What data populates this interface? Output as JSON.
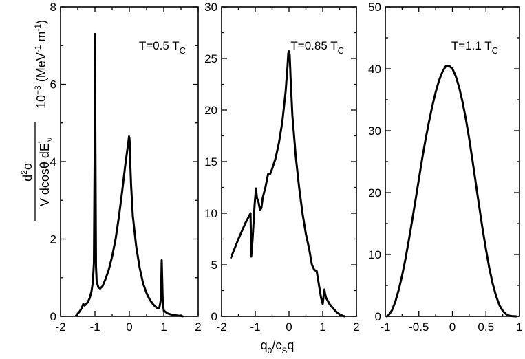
{
  "chart_data": [
    {
      "type": "line",
      "annotation": "T=0.5 T",
      "annotation_sub": "C",
      "xlim": [
        -2,
        2
      ],
      "ylim": [
        0,
        8
      ],
      "xticks": [
        "-2",
        "-1",
        "0",
        "1",
        "2"
      ],
      "yticks": [
        "0",
        "2",
        "4",
        "6",
        "8"
      ],
      "series": [
        {
          "x": [
            -1.55,
            -1.45,
            -1.38,
            -1.34,
            -1.3,
            -1.25,
            -1.2,
            -1.15,
            -1.1,
            -1.06,
            -1.03,
            -1.01,
            -1.0,
            -0.99,
            -0.97,
            -0.95,
            -0.9,
            -0.85,
            -0.78,
            -0.7,
            -0.6,
            -0.5,
            -0.4,
            -0.3,
            -0.2,
            -0.12,
            -0.06,
            -0.03,
            -0.01,
            0.0,
            0.01,
            0.02,
            0.05,
            0.1,
            0.2,
            0.3,
            0.4,
            0.5,
            0.6,
            0.7,
            0.8,
            0.87,
            0.91,
            0.93,
            0.94,
            0.95,
            0.97,
            1.0,
            1.1,
            1.2,
            1.3,
            1.4,
            1.5,
            1.55
          ],
          "y": [
            0.02,
            0.12,
            0.22,
            0.32,
            0.28,
            0.32,
            0.38,
            0.48,
            0.65,
            0.9,
            1.4,
            4.0,
            7.3,
            5.0,
            1.3,
            0.9,
            0.75,
            0.72,
            0.78,
            0.95,
            1.2,
            1.55,
            2.0,
            2.6,
            3.3,
            3.9,
            4.3,
            4.5,
            4.65,
            4.62,
            4.5,
            4.1,
            3.4,
            2.6,
            1.8,
            1.25,
            0.85,
            0.6,
            0.42,
            0.3,
            0.22,
            0.22,
            0.4,
            1.0,
            1.45,
            1.1,
            0.4,
            0.15,
            0.08,
            0.05,
            0.03,
            0.02,
            0.01,
            0.0
          ]
        }
      ]
    },
    {
      "type": "line",
      "annotation": "T=0.85 T",
      "annotation_sub": "C",
      "xlim": [
        -2,
        2
      ],
      "ylim": [
        0,
        30
      ],
      "xticks": [
        "-2",
        "-1",
        "0",
        "1",
        "2"
      ],
      "yticks": [
        "0",
        "5",
        "10",
        "15",
        "20",
        "25",
        "30"
      ],
      "series": [
        {
          "x": [
            -1.72,
            -1.5,
            -1.3,
            -1.14,
            -1.12,
            -1.08,
            -1.02,
            -0.98,
            -0.95,
            -0.9,
            -0.86,
            -0.82,
            -0.78,
            -0.7,
            -0.62,
            -0.56,
            -0.5,
            -0.4,
            -0.3,
            -0.2,
            -0.1,
            -0.05,
            -0.02,
            0.0,
            0.02,
            0.05,
            0.1,
            0.2,
            0.3,
            0.4,
            0.5,
            0.6,
            0.68,
            0.75,
            0.82,
            0.9,
            0.95,
            1.0,
            1.05,
            1.07,
            1.1,
            1.2,
            1.3,
            1.4,
            1.5,
            1.6,
            1.65
          ],
          "y": [
            5.7,
            7.5,
            9.0,
            10.0,
            5.8,
            7.5,
            10.8,
            12.4,
            11.5,
            11.0,
            10.3,
            10.5,
            11.5,
            12.5,
            13.8,
            13.8,
            14.3,
            15.3,
            16.8,
            18.8,
            21.8,
            24.0,
            25.5,
            25.7,
            25.3,
            23.0,
            19.5,
            15.5,
            12.5,
            10.0,
            8.0,
            6.5,
            5.0,
            4.5,
            4.4,
            2.8,
            1.8,
            1.2,
            2.6,
            2.2,
            1.8,
            1.2,
            0.8,
            0.45,
            0.2,
            0.05,
            0.0
          ]
        }
      ]
    },
    {
      "type": "line",
      "annotation": "T=1.1 T",
      "annotation_sub": "C",
      "xlim": [
        -1,
        1
      ],
      "ylim": [
        0,
        50
      ],
      "xticks": [
        "-1",
        "-0.5",
        "0",
        "0.5",
        "1"
      ],
      "yticks": [
        "0",
        "10",
        "20",
        "30",
        "40",
        "50"
      ],
      "series": [
        {
          "x": [
            -0.98,
            -0.95,
            -0.9,
            -0.85,
            -0.8,
            -0.75,
            -0.7,
            -0.65,
            -0.6,
            -0.55,
            -0.5,
            -0.45,
            -0.4,
            -0.35,
            -0.3,
            -0.25,
            -0.2,
            -0.15,
            -0.1,
            -0.05,
            0.0,
            0.05,
            0.1,
            0.15,
            0.2,
            0.25,
            0.3,
            0.35,
            0.4,
            0.45,
            0.5,
            0.55,
            0.6,
            0.65,
            0.7,
            0.75,
            0.8,
            0.85,
            0.9,
            0.95
          ],
          "y": [
            0.0,
            0.2,
            1.0,
            2.4,
            4.3,
            6.6,
            9.3,
            12.3,
            15.5,
            18.8,
            22.2,
            25.5,
            28.6,
            31.4,
            34.0,
            36.2,
            38.1,
            39.5,
            40.4,
            40.5,
            40.0,
            38.8,
            37.0,
            34.7,
            31.9,
            28.7,
            25.1,
            21.4,
            17.7,
            14.1,
            10.8,
            7.8,
            5.3,
            3.3,
            1.8,
            0.9,
            0.35,
            0.1,
            0.02,
            0.0
          ]
        }
      ]
    }
  ],
  "xlabel": {
    "main1": "q",
    "sub1": "0",
    "main2": "/c",
    "sub2": "S",
    "main3": "q"
  },
  "ylabel": {
    "numerator": "d",
    "numerator_sup": "2",
    "numerator_tail": "σ",
    "denominator": "V dcosθ dE",
    "denominator_sup": "'",
    "denominator_sub": "ν",
    "units_pre": "10",
    "units_pre_sup": "−3",
    "units_open": " (MeV",
    "units_sup1": "-1",
    "units_mid": " m",
    "units_sup2": "-1",
    "units_close": ")"
  }
}
